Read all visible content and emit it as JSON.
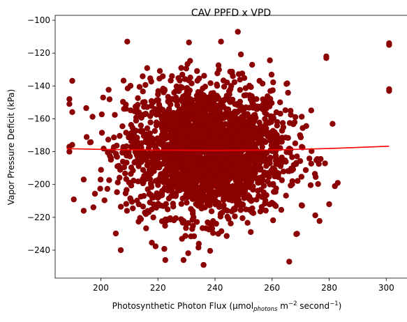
{
  "chart_data": {
    "type": "scatter",
    "title": "CAV PPFD x VPD",
    "xlabel": {
      "prefix": "Photosynthetic Photon Flux (µmol",
      "subscript": "photons",
      "middle": " m",
      "sup1": "−2",
      "middle2": " second",
      "sup2": "−1",
      "suffix": ")"
    },
    "ylabel": "Vapor Pressure Deficit (kPa)",
    "xlim": [
      184,
      308
    ],
    "ylim": [
      -257,
      -97
    ],
    "xticks": [
      200,
      220,
      240,
      260,
      280,
      300
    ],
    "yticks": [
      -240,
      -220,
      -200,
      -180,
      -160,
      -140,
      -120,
      -100
    ],
    "grid": false,
    "point_color": "#8b0000",
    "line_color": "#ff0000",
    "cloud": {
      "x_mean": 237,
      "x_std": 14,
      "y_mean": -179,
      "y_std": 20,
      "count": 2500
    },
    "outliers": [
      {
        "x": 301,
        "y": -114
      },
      {
        "x": 301,
        "y": -115
      },
      {
        "x": 301,
        "y": -142
      },
      {
        "x": 301,
        "y": -143
      },
      {
        "x": 279,
        "y": -122
      },
      {
        "x": 279,
        "y": -123
      },
      {
        "x": 189,
        "y": -148
      },
      {
        "x": 189,
        "y": -151
      },
      {
        "x": 189,
        "y": -177
      },
      {
        "x": 189,
        "y": -180
      },
      {
        "x": 194,
        "y": -216
      },
      {
        "x": 194,
        "y": -197
      },
      {
        "x": 207,
        "y": -240
      },
      {
        "x": 266,
        "y": -247
      },
      {
        "x": 236,
        "y": -249
      },
      {
        "x": 248,
        "y": -107
      },
      {
        "x": 282,
        "y": -201
      },
      {
        "x": 280,
        "y": -212
      }
    ],
    "trend_line": {
      "x": [
        188,
        200,
        220,
        240,
        260,
        280,
        301
      ],
      "y": [
        -178.2,
        -178.6,
        -179.1,
        -179.3,
        -179.0,
        -178.1,
        -176.7
      ]
    }
  }
}
